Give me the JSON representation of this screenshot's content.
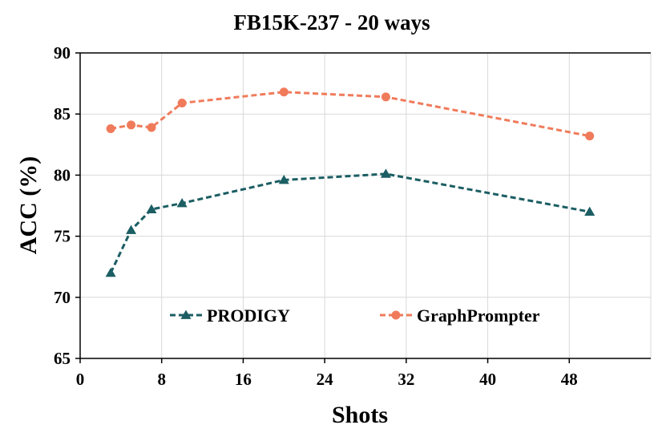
{
  "chart_data": {
    "type": "line",
    "title": "FB15K-237 - 20 ways",
    "xlabel": "Shots",
    "ylabel": "ACC (%)",
    "xlim": [
      0,
      56
    ],
    "ylim": [
      65,
      90
    ],
    "xticks": [
      0,
      8,
      16,
      24,
      32,
      40,
      48
    ],
    "yticks": [
      65,
      70,
      75,
      80,
      85,
      90
    ],
    "grid": true,
    "legend_position": "inside-bottom",
    "series": [
      {
        "name": "PRODIGY",
        "color": "#1b5e63",
        "marker": "triangle",
        "line_style": "dashed",
        "x": [
          3,
          5,
          7,
          10,
          20,
          30,
          50
        ],
        "y": [
          72.0,
          75.5,
          77.2,
          77.7,
          79.6,
          80.1,
          77.0
        ]
      },
      {
        "name": "GraphPrompter",
        "color": "#f07b5b",
        "marker": "circle",
        "line_style": "dashed",
        "x": [
          3,
          5,
          7,
          10,
          20,
          30,
          50
        ],
        "y": [
          83.8,
          84.1,
          83.9,
          85.9,
          86.8,
          86.4,
          83.2
        ]
      }
    ]
  }
}
